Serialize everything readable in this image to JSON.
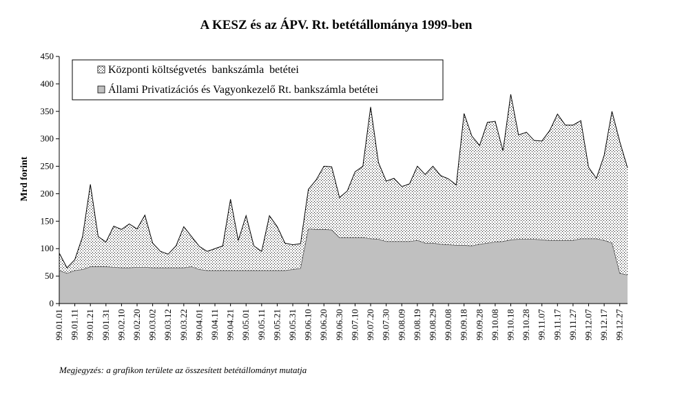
{
  "chart_data": {
    "type": "area",
    "title": "A KESZ és az ÁPV. Rt. betétállománya 1999-ben",
    "ylabel": "Mrd forint",
    "xlabel": "",
    "ylim": [
      0,
      450
    ],
    "yticks": [
      0,
      50,
      100,
      150,
      200,
      250,
      300,
      350,
      400,
      450
    ],
    "stacked": true,
    "legend_position": "top-left",
    "note": "Megjegyzés: a grafikon területe az összesített betétállományt mutatja",
    "x_tick_labels": [
      "99.01.01",
      "99.01.11",
      "99.01.21",
      "99.01.31",
      "99.02.10",
      "99.02.20",
      "99.03.02",
      "99.03.12",
      "99.03.22",
      "99.04.01",
      "99.04.11",
      "99.04.21",
      "99.05.01",
      "99.05.11",
      "99.05.21",
      "99.05.31",
      "99.06.10",
      "99.06.20",
      "99.06.30",
      "99.07.10",
      "99.07.20",
      "99.07.30",
      "99.08.09",
      "99.08.19",
      "99.08.29",
      "99.09.08",
      "99.09.18",
      "99.09.28",
      "99.10.08",
      "99.10.18",
      "99.10.28",
      "99.11.07",
      "99.11.17",
      "99.11.27",
      "99.12.07",
      "99.12.17",
      "99.12.27"
    ],
    "x": [
      "99.01.01",
      "99.01.06",
      "99.01.11",
      "99.01.16",
      "99.01.21",
      "99.01.26",
      "99.01.31",
      "99.02.05",
      "99.02.10",
      "99.02.15",
      "99.02.20",
      "99.02.25",
      "99.03.02",
      "99.03.07",
      "99.03.12",
      "99.03.17",
      "99.03.22",
      "99.03.27",
      "99.04.01",
      "99.04.06",
      "99.04.11",
      "99.04.16",
      "99.04.21",
      "99.04.26",
      "99.05.01",
      "99.05.06",
      "99.05.11",
      "99.05.16",
      "99.05.21",
      "99.05.26",
      "99.05.31",
      "99.06.05",
      "99.06.10",
      "99.06.15",
      "99.06.20",
      "99.06.25",
      "99.06.30",
      "99.07.05",
      "99.07.10",
      "99.07.15",
      "99.07.20",
      "99.07.25",
      "99.07.30",
      "99.08.04",
      "99.08.09",
      "99.08.14",
      "99.08.19",
      "99.08.24",
      "99.08.29",
      "99.09.03",
      "99.09.08",
      "99.09.13",
      "99.09.18",
      "99.09.23",
      "99.09.28",
      "99.10.03",
      "99.10.08",
      "99.10.13",
      "99.10.18",
      "99.10.23",
      "99.10.28",
      "99.11.02",
      "99.11.07",
      "99.11.12",
      "99.11.17",
      "99.11.22",
      "99.11.27",
      "99.12.02",
      "99.12.07",
      "99.12.12",
      "99.12.17",
      "99.12.22",
      "99.12.27",
      "99.12.31"
    ],
    "series": [
      {
        "name": "Állami Privatizációs és Vagyonkezelő Rt. bankszámla betétei",
        "color": "#c0c0c0",
        "values": [
          60,
          55,
          60,
          62,
          67,
          67,
          67,
          66,
          65,
          65,
          66,
          66,
          65,
          65,
          65,
          65,
          65,
          67,
          62,
          60,
          60,
          60,
          60,
          60,
          60,
          60,
          60,
          60,
          60,
          60,
          62,
          64,
          136,
          135,
          135,
          134,
          120,
          120,
          120,
          120,
          118,
          117,
          113,
          113,
          113,
          113,
          115,
          110,
          110,
          108,
          107,
          106,
          106,
          105,
          108,
          110,
          112,
          113,
          116,
          117,
          117,
          117,
          116,
          115,
          115,
          115,
          115,
          118,
          118,
          118,
          115,
          110,
          55,
          52
        ]
      },
      {
        "name": "Központi költségvetés  bankszámla  betétei",
        "color": "#ffffff",
        "pattern": "dots",
        "values": [
          32,
          10,
          20,
          60,
          150,
          55,
          45,
          75,
          70,
          80,
          70,
          95,
          45,
          30,
          25,
          40,
          75,
          55,
          42,
          35,
          40,
          45,
          130,
          55,
          100,
          45,
          35,
          100,
          80,
          50,
          45,
          45,
          72,
          90,
          115,
          115,
          73,
          85,
          120,
          130,
          240,
          140,
          110,
          115,
          100,
          105,
          135,
          125,
          140,
          125,
          120,
          110,
          240,
          200,
          180,
          220,
          220,
          165,
          265,
          190,
          195,
          180,
          180,
          200,
          230,
          210,
          210,
          215,
          130,
          110,
          155,
          240,
          240,
          195
        ]
      }
    ]
  }
}
